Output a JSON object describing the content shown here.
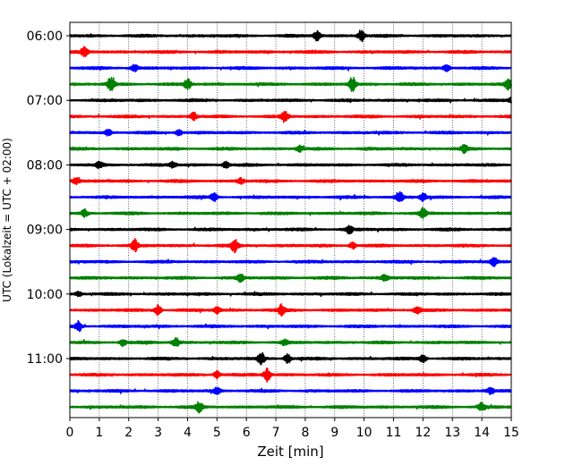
{
  "chart_data": {
    "type": "line",
    "title": "",
    "xlabel": "Zeit  [min]",
    "ylabel": "UTC (Lokalzeit = UTC + 02:00)",
    "xlim": [
      0,
      15
    ],
    "xticks": [
      0,
      1,
      2,
      3,
      4,
      5,
      6,
      7,
      8,
      9,
      10,
      11,
      12,
      13,
      14,
      15
    ],
    "xtick_labels": [
      "0",
      "1",
      "2",
      "3",
      "4",
      "5",
      "6",
      "7",
      "8",
      "9",
      "10",
      "11",
      "12",
      "13",
      "14",
      "15"
    ],
    "grid": "vertical dotted",
    "ytick_labels": [
      "06:00",
      "07:00",
      "08:00",
      "09:00",
      "10:00",
      "11:00"
    ],
    "colors": [
      "#000000",
      "#ff0000",
      "#0000ff",
      "#008000"
    ],
    "traces": [
      {
        "time": "06:00",
        "color": "#000000",
        "events": [
          [
            8.4,
            1.2
          ],
          [
            9.9,
            1.4
          ]
        ]
      },
      {
        "time": "06:15",
        "color": "#ff0000",
        "events": [
          [
            0.5,
            1.3
          ]
        ]
      },
      {
        "time": "06:30",
        "color": "#0000ff",
        "events": [
          [
            2.2,
            0.8
          ],
          [
            12.8,
            0.8
          ]
        ]
      },
      {
        "time": "06:45",
        "color": "#008000",
        "events": [
          [
            1.4,
            1.8
          ],
          [
            4.0,
            1.2
          ],
          [
            9.6,
            1.8
          ],
          [
            14.9,
            1.2
          ]
        ]
      },
      {
        "time": "07:00",
        "color": "#000000",
        "events": [
          [
            15.0,
            0.8
          ]
        ]
      },
      {
        "time": "07:15",
        "color": "#ff0000",
        "events": [
          [
            4.2,
            0.9
          ],
          [
            7.3,
            1.5
          ]
        ]
      },
      {
        "time": "07:30",
        "color": "#0000ff",
        "events": [
          [
            1.3,
            0.8
          ],
          [
            3.7,
            0.7
          ]
        ]
      },
      {
        "time": "07:45",
        "color": "#008000",
        "events": [
          [
            7.8,
            0.7
          ],
          [
            13.4,
            0.8
          ]
        ]
      },
      {
        "time": "08:00",
        "color": "#000000",
        "events": [
          [
            1.0,
            0.8
          ],
          [
            3.5,
            0.7
          ],
          [
            5.3,
            0.8
          ]
        ]
      },
      {
        "time": "08:15",
        "color": "#ff0000",
        "events": [
          [
            0.2,
            0.7
          ],
          [
            5.8,
            0.7
          ]
        ]
      },
      {
        "time": "08:30",
        "color": "#0000ff",
        "events": [
          [
            4.9,
            1.0
          ],
          [
            11.2,
            1.6
          ],
          [
            12.0,
            1.0
          ]
        ]
      },
      {
        "time": "08:45",
        "color": "#008000",
        "events": [
          [
            0.5,
            0.8
          ],
          [
            12.0,
            1.2
          ]
        ]
      },
      {
        "time": "09:00",
        "color": "#000000",
        "events": [
          [
            9.5,
            0.9
          ]
        ]
      },
      {
        "time": "09:15",
        "color": "#ff0000",
        "events": [
          [
            2.2,
            1.5
          ],
          [
            5.6,
            1.5
          ],
          [
            9.6,
            0.8
          ]
        ]
      },
      {
        "time": "09:30",
        "color": "#0000ff",
        "events": [
          [
            14.4,
            1.2
          ]
        ]
      },
      {
        "time": "09:45",
        "color": "#008000",
        "events": [
          [
            5.8,
            0.8
          ],
          [
            10.7,
            0.8
          ]
        ]
      },
      {
        "time": "10:00",
        "color": "#000000",
        "events": [
          [
            0.3,
            0.5
          ]
        ]
      },
      {
        "time": "10:15",
        "color": "#ff0000",
        "events": [
          [
            3.0,
            1.2
          ],
          [
            5.0,
            0.9
          ],
          [
            7.2,
            1.3
          ],
          [
            11.8,
            0.8
          ]
        ]
      },
      {
        "time": "10:30",
        "color": "#0000ff",
        "events": [
          [
            0.3,
            1.2
          ]
        ]
      },
      {
        "time": "10:45",
        "color": "#008000",
        "events": [
          [
            1.8,
            0.8
          ],
          [
            3.6,
            1.2
          ],
          [
            7.3,
            0.7
          ]
        ]
      },
      {
        "time": "11:00",
        "color": "#000000",
        "events": [
          [
            6.5,
            1.6
          ],
          [
            7.4,
            1.2
          ],
          [
            12.0,
            1.0
          ]
        ]
      },
      {
        "time": "11:15",
        "color": "#ff0000",
        "events": [
          [
            5.0,
            0.9
          ],
          [
            6.7,
            1.6
          ]
        ]
      },
      {
        "time": "11:30",
        "color": "#0000ff",
        "events": [
          [
            5.0,
            0.8
          ],
          [
            14.3,
            0.7
          ]
        ]
      },
      {
        "time": "11:45",
        "color": "#008000",
        "events": [
          [
            4.4,
            1.2
          ],
          [
            14.0,
            1.0
          ]
        ]
      }
    ]
  }
}
